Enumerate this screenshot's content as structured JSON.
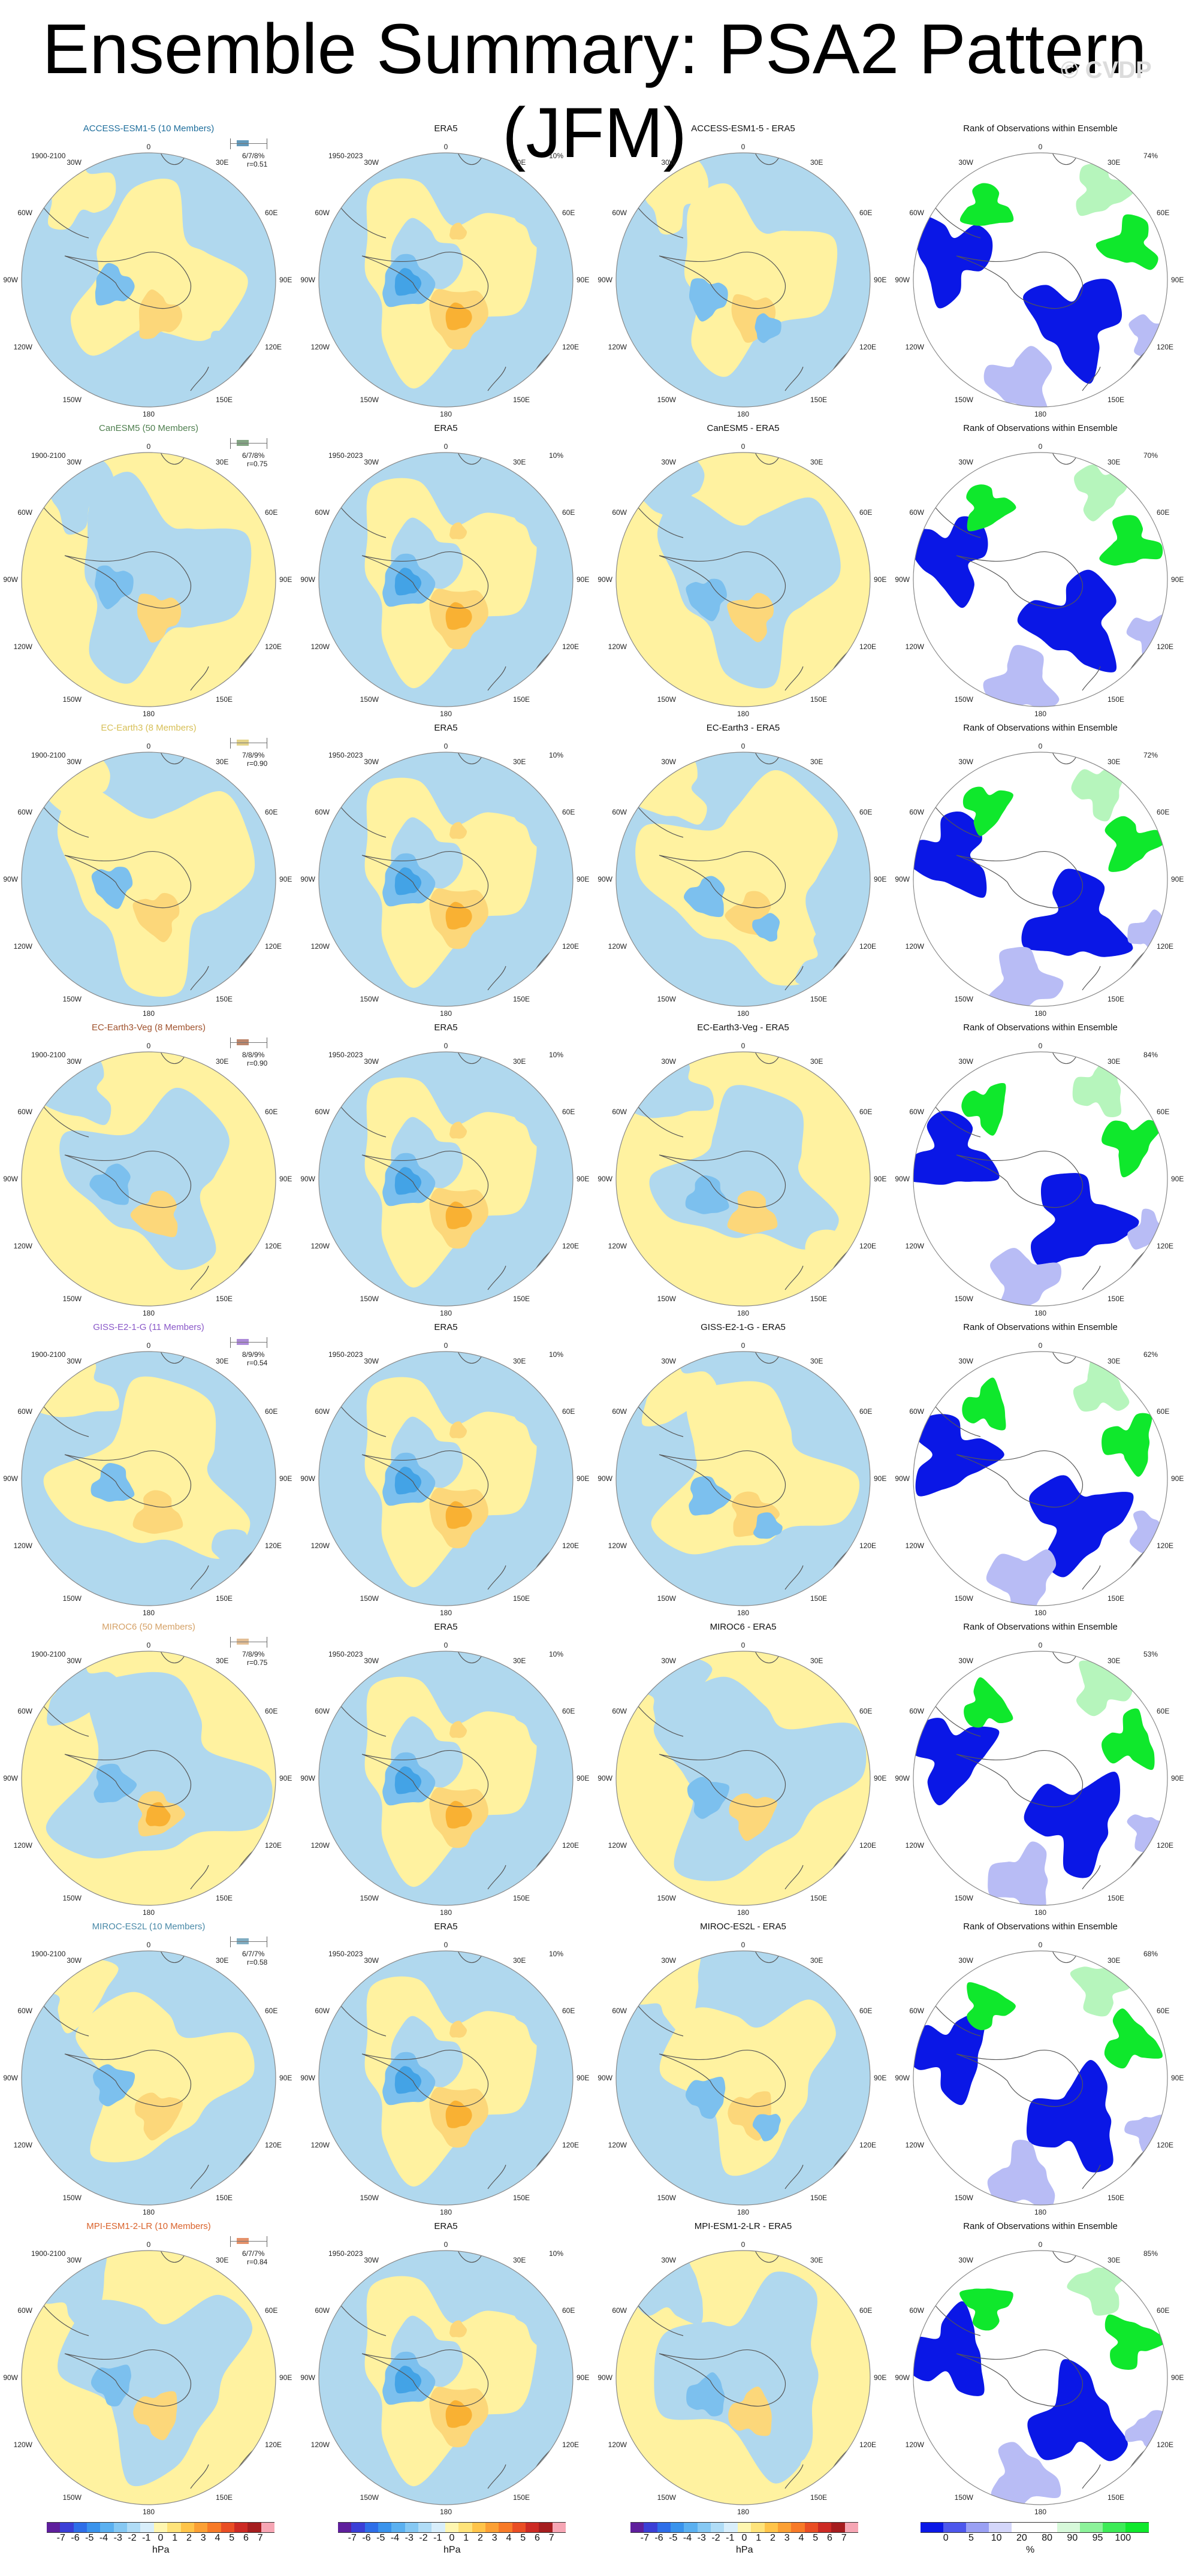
{
  "title": "Ensemble Summary: PSA2 Pattern (JFM)",
  "watermark": "© CVDP",
  "colors": {
    "blue_light": "#b0d8ee",
    "blue_mid": "#7cc0ee",
    "blue_dark": "#43a3e6",
    "yellow": "#fff2a0",
    "yellow_mid": "#fcd77a",
    "orange": "#f9b133",
    "rank_low": "#0a17e6",
    "rank_mid": "#b8bcf5",
    "rank_high": "#0fe82c",
    "rank_high_light": "#b6f5bc",
    "ring": "#888888"
  },
  "map_labels": {
    "top": "0",
    "bottom": "180",
    "left_mid": "90W",
    "right_mid": "90E",
    "l30": "30W",
    "l60": "60W",
    "l120": "120W",
    "l150": "150W",
    "r30": "30E",
    "r60": "60E",
    "r120": "120E",
    "r150": "150E"
  },
  "ensemble_period": "1900-2100",
  "obs_period": "1950-2023",
  "obs_percent": "10%",
  "rank_title": "Rank of Observations within Ensemble",
  "obs_title": "ERA5",
  "rows": [
    {
      "model": "ACCESS-ESM1-5 (10 Members)",
      "diff_title": "ACCESS-ESM1-5 - ERA5",
      "color": "#1f6e9c",
      "pct": "6/7/8%",
      "r": "r=0.51",
      "rank_pct": "74%"
    },
    {
      "model": "CanESM5 (50 Members)",
      "diff_title": "CanESM5 - ERA5",
      "color": "#4f7f4f",
      "pct": "6/7/8%",
      "r": "r=0.75",
      "rank_pct": "70%"
    },
    {
      "model": "EC-Earth3 (8 Members)",
      "diff_title": "EC-Earth3 - ERA5",
      "color": "#d7c058",
      "pct": "7/8/9%",
      "r": "r=0.90",
      "rank_pct": "72%"
    },
    {
      "model": "EC-Earth3-Veg (8 Members)",
      "diff_title": "EC-Earth3-Veg - ERA5",
      "color": "#a0522d",
      "pct": "8/8/9%",
      "r": "r=0.90",
      "rank_pct": "84%"
    },
    {
      "model": "GISS-E2-1-G (11 Members)",
      "diff_title": "GISS-E2-1-G - ERA5",
      "color": "#8a58c8",
      "pct": "8/9/9%",
      "r": "r=0.54",
      "rank_pct": "62%"
    },
    {
      "model": "MIROC6 (50 Members)",
      "diff_title": "MIROC6 - ERA5",
      "color": "#d5a268",
      "pct": "7/8/9%",
      "r": "r=0.75",
      "rank_pct": "53%"
    },
    {
      "model": "MIROC-ES2L (10 Members)",
      "diff_title": "MIROC-ES2L - ERA5",
      "color": "#4a8aa8",
      "pct": "6/7/7%",
      "r": "r=0.58",
      "rank_pct": "68%"
    },
    {
      "model": "MPI-ESM1-2-LR (10 Members)",
      "diff_title": "MPI-ESM1-2-LR - ERA5",
      "color": "#d9622b",
      "pct": "6/7/7%",
      "r": "r=0.84",
      "rank_pct": "85%"
    }
  ],
  "colorbar_hpa": {
    "ticks": [
      "-7",
      "-6",
      "-5",
      "-4",
      "-3",
      "-2",
      "-1",
      "0",
      "1",
      "2",
      "3",
      "4",
      "5",
      "6",
      "7"
    ],
    "unit": "hPa",
    "colors": [
      "#5e1f9c",
      "#3b3fd6",
      "#2e6ee8",
      "#3a93ec",
      "#5bb0f0",
      "#86c8f3",
      "#b0dcf6",
      "#d8eefb",
      "#fff6b0",
      "#ffe37a",
      "#ffc44a",
      "#fba035",
      "#f77a28",
      "#e94e24",
      "#cc2a24",
      "#a51d1f",
      "#f6a6b4"
    ]
  },
  "colorbar_rank": {
    "ticks": [
      "0",
      "5",
      "10",
      "20",
      "80",
      "90",
      "95",
      "100"
    ],
    "unit": "%",
    "colors": [
      "#0a17e6",
      "#4d57ec",
      "#9aa0f3",
      "#d4d6fa",
      "#ffffff",
      "#ffffff",
      "#d7f9da",
      "#8cf29a",
      "#3deb57",
      "#0fe82c"
    ]
  }
}
